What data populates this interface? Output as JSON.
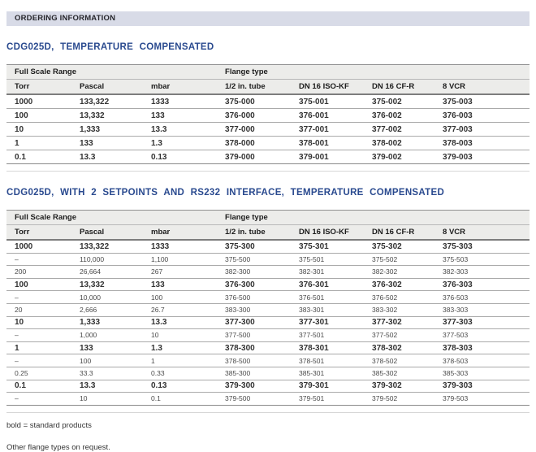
{
  "header": {
    "title": "ORDERING INFORMATION"
  },
  "colors": {
    "accent_blue": "#2a4a8f",
    "section_bar_bg": "#d8dbe7",
    "table_header_bg": "#ececea"
  },
  "sections": [
    {
      "title": "CDG025D, TEMPERATURE COMPENSATED",
      "table": {
        "group_headers": [
          {
            "label": "Full Scale Range",
            "span": 3
          },
          {
            "label": "Flange type",
            "span": 4
          }
        ],
        "columns": [
          "Torr",
          "Pascal",
          "mbar",
          "1/2 in. tube",
          "DN 16 ISO-KF",
          "DN 16 CF-R",
          "8 VCR"
        ],
        "rows": [
          {
            "bold": true,
            "cells": [
              "1000",
              "133,322",
              "1333",
              "375-000",
              "375-001",
              "375-002",
              "375-003"
            ]
          },
          {
            "bold": true,
            "cells": [
              "100",
              "13,332",
              "133",
              "376-000",
              "376-001",
              "376-002",
              "376-003"
            ]
          },
          {
            "bold": true,
            "cells": [
              "10",
              "1,333",
              "13.3",
              "377-000",
              "377-001",
              "377-002",
              "377-003"
            ]
          },
          {
            "bold": true,
            "cells": [
              "1",
              "133",
              "1.3",
              "378-000",
              "378-001",
              "378-002",
              "378-003"
            ]
          },
          {
            "bold": true,
            "cells": [
              "0.1",
              "13.3",
              "0.13",
              "379-000",
              "379-001",
              "379-002",
              "379-003"
            ]
          }
        ]
      }
    },
    {
      "title": "CDG025D, WITH 2 SETPOINTS AND RS232 INTERFACE, TEMPERATURE COMPENSATED",
      "table": {
        "group_headers": [
          {
            "label": "Full Scale Range",
            "span": 3
          },
          {
            "label": "Flange type",
            "span": 4
          }
        ],
        "columns": [
          "Torr",
          "Pascal",
          "mbar",
          "1/2 in. tube",
          "DN 16 ISO-KF",
          "DN 16 CF-R",
          "8 VCR"
        ],
        "rows": [
          {
            "bold": true,
            "cells": [
              "1000",
              "133,322",
              "1333",
              "375-300",
              "375-301",
              "375-302",
              "375-303"
            ]
          },
          {
            "bold": false,
            "cells": [
              "–",
              "110,000",
              "1,100",
              "375-500",
              "375-501",
              "375-502",
              "375-503"
            ]
          },
          {
            "bold": false,
            "cells": [
              "200",
              "26,664",
              "267",
              "382-300",
              "382-301",
              "382-302",
              "382-303"
            ]
          },
          {
            "bold": true,
            "cells": [
              "100",
              "13,332",
              "133",
              "376-300",
              "376-301",
              "376-302",
              "376-303"
            ]
          },
          {
            "bold": false,
            "cells": [
              "–",
              "10,000",
              "100",
              "376-500",
              "376-501",
              "376-502",
              "376-503"
            ]
          },
          {
            "bold": false,
            "cells": [
              "20",
              "2,666",
              "26.7",
              "383-300",
              "383-301",
              "383-302",
              "383-303"
            ]
          },
          {
            "bold": true,
            "cells": [
              "10",
              "1,333",
              "13.3",
              "377-300",
              "377-301",
              "377-302",
              "377-303"
            ]
          },
          {
            "bold": false,
            "cells": [
              "–",
              "1,000",
              "10",
              "377-500",
              "377-501",
              "377-502",
              "377-503"
            ]
          },
          {
            "bold": true,
            "cells": [
              "1",
              "133",
              "1.3",
              "378-300",
              "378-301",
              "378-302",
              "378-303"
            ]
          },
          {
            "bold": false,
            "cells": [
              "–",
              "100",
              "1",
              "378-500",
              "378-501",
              "378-502",
              "378-503"
            ]
          },
          {
            "bold": false,
            "cells": [
              "0.25",
              "33.3",
              "0.33",
              "385-300",
              "385-301",
              "385-302",
              "385-303"
            ]
          },
          {
            "bold": true,
            "cells": [
              "0.1",
              "13.3",
              "0.13",
              "379-300",
              "379-301",
              "379-302",
              "379-303"
            ]
          },
          {
            "bold": false,
            "cells": [
              "–",
              "10",
              "0.1",
              "379-500",
              "379-501",
              "379-502",
              "379-503"
            ]
          }
        ]
      }
    }
  ],
  "footer": {
    "notes": [
      "bold = standard products",
      "Other flange types on request."
    ]
  }
}
